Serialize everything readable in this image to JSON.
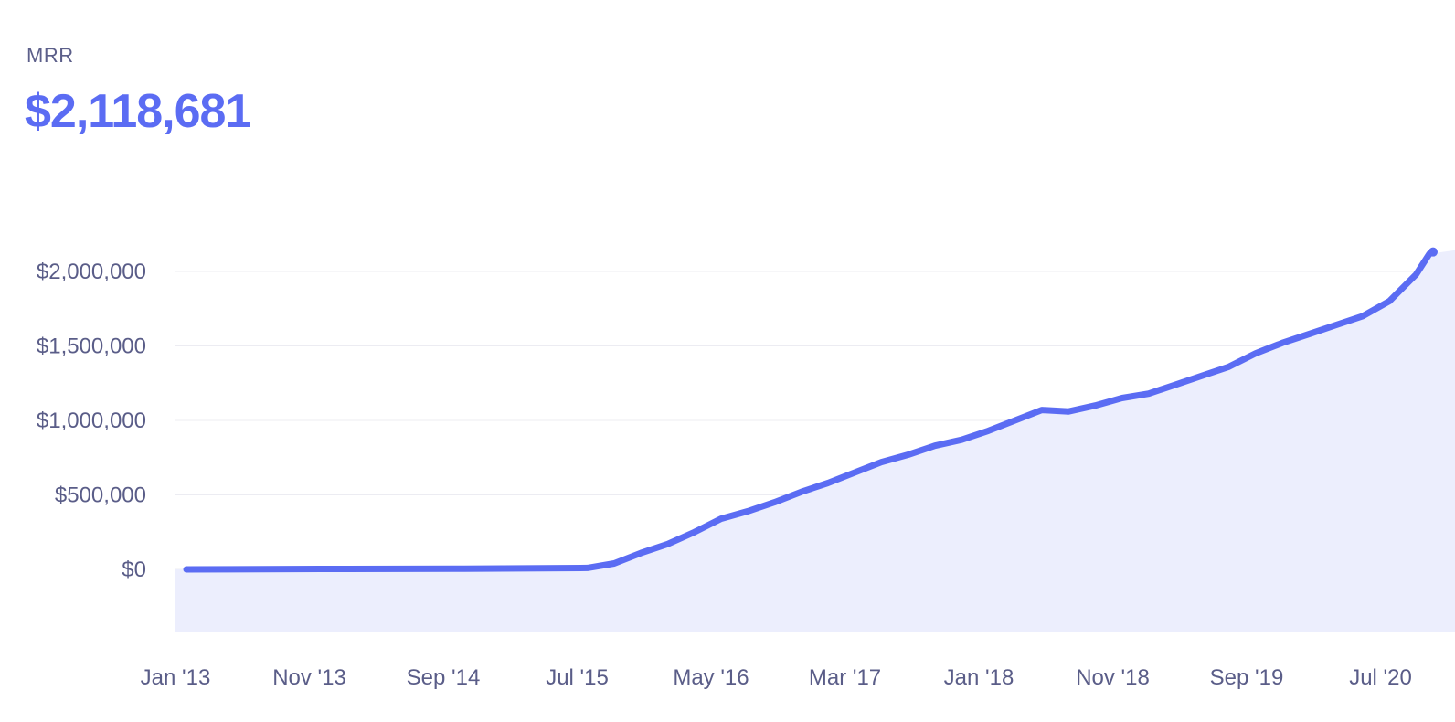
{
  "metric": {
    "label": "MRR",
    "value": "$2,118,681"
  },
  "colors": {
    "line": "#5b6cf3",
    "area": "#eceefd",
    "grid": "#ececf2",
    "label": "#5a5d88"
  },
  "chart_data": {
    "type": "area",
    "title": "MRR",
    "xlabel": "",
    "ylabel": "",
    "x_start": "Jan '13",
    "x_end": "Oct '20",
    "x_tick_labels": [
      "Jan '13",
      "Nov '13",
      "Sep '14",
      "Jul '15",
      "May '16",
      "Mar '17",
      "Jan '18",
      "Nov '18",
      "Sep '19",
      "Jul '20"
    ],
    "y_ticks": [
      0,
      500000,
      1000000,
      1500000,
      2000000
    ],
    "y_tick_labels": [
      "$0",
      "$500,000",
      "$1,000,000",
      "$1,500,000",
      "$2,000,000"
    ],
    "ylim": [
      -420000,
      2000000
    ],
    "grid": true,
    "legend": "none",
    "series": [
      {
        "x": [
          "Jan '13",
          "Nov '13",
          "Sep '14",
          "Jul '15",
          "Sep '15",
          "Nov '15",
          "Jan '16",
          "Mar '16",
          "May '16",
          "Jul '16",
          "Sep '16",
          "Nov '16",
          "Jan '17",
          "Mar '17",
          "May '17",
          "Jul '17",
          "Sep '17",
          "Nov '17",
          "Jan '18",
          "Mar '18",
          "May '18",
          "Jul '18",
          "Sep '18",
          "Nov '18",
          "Jan '19",
          "Mar '19",
          "May '19",
          "Jul '19",
          "Sep '19",
          "Nov '19",
          "Jan '20",
          "Mar '20",
          "May '20",
          "Jul '20",
          "Sep '20",
          "Oct '20"
        ],
        "values": [
          0,
          3000,
          4000,
          10000,
          40000,
          110000,
          170000,
          250000,
          340000,
          390000,
          450000,
          520000,
          580000,
          650000,
          720000,
          770000,
          830000,
          870000,
          930000,
          1000000,
          1070000,
          1060000,
          1100000,
          1150000,
          1180000,
          1240000,
          1300000,
          1360000,
          1450000,
          1520000,
          1580000,
          1640000,
          1700000,
          1800000,
          1980000,
          2118681
        ]
      }
    ]
  }
}
